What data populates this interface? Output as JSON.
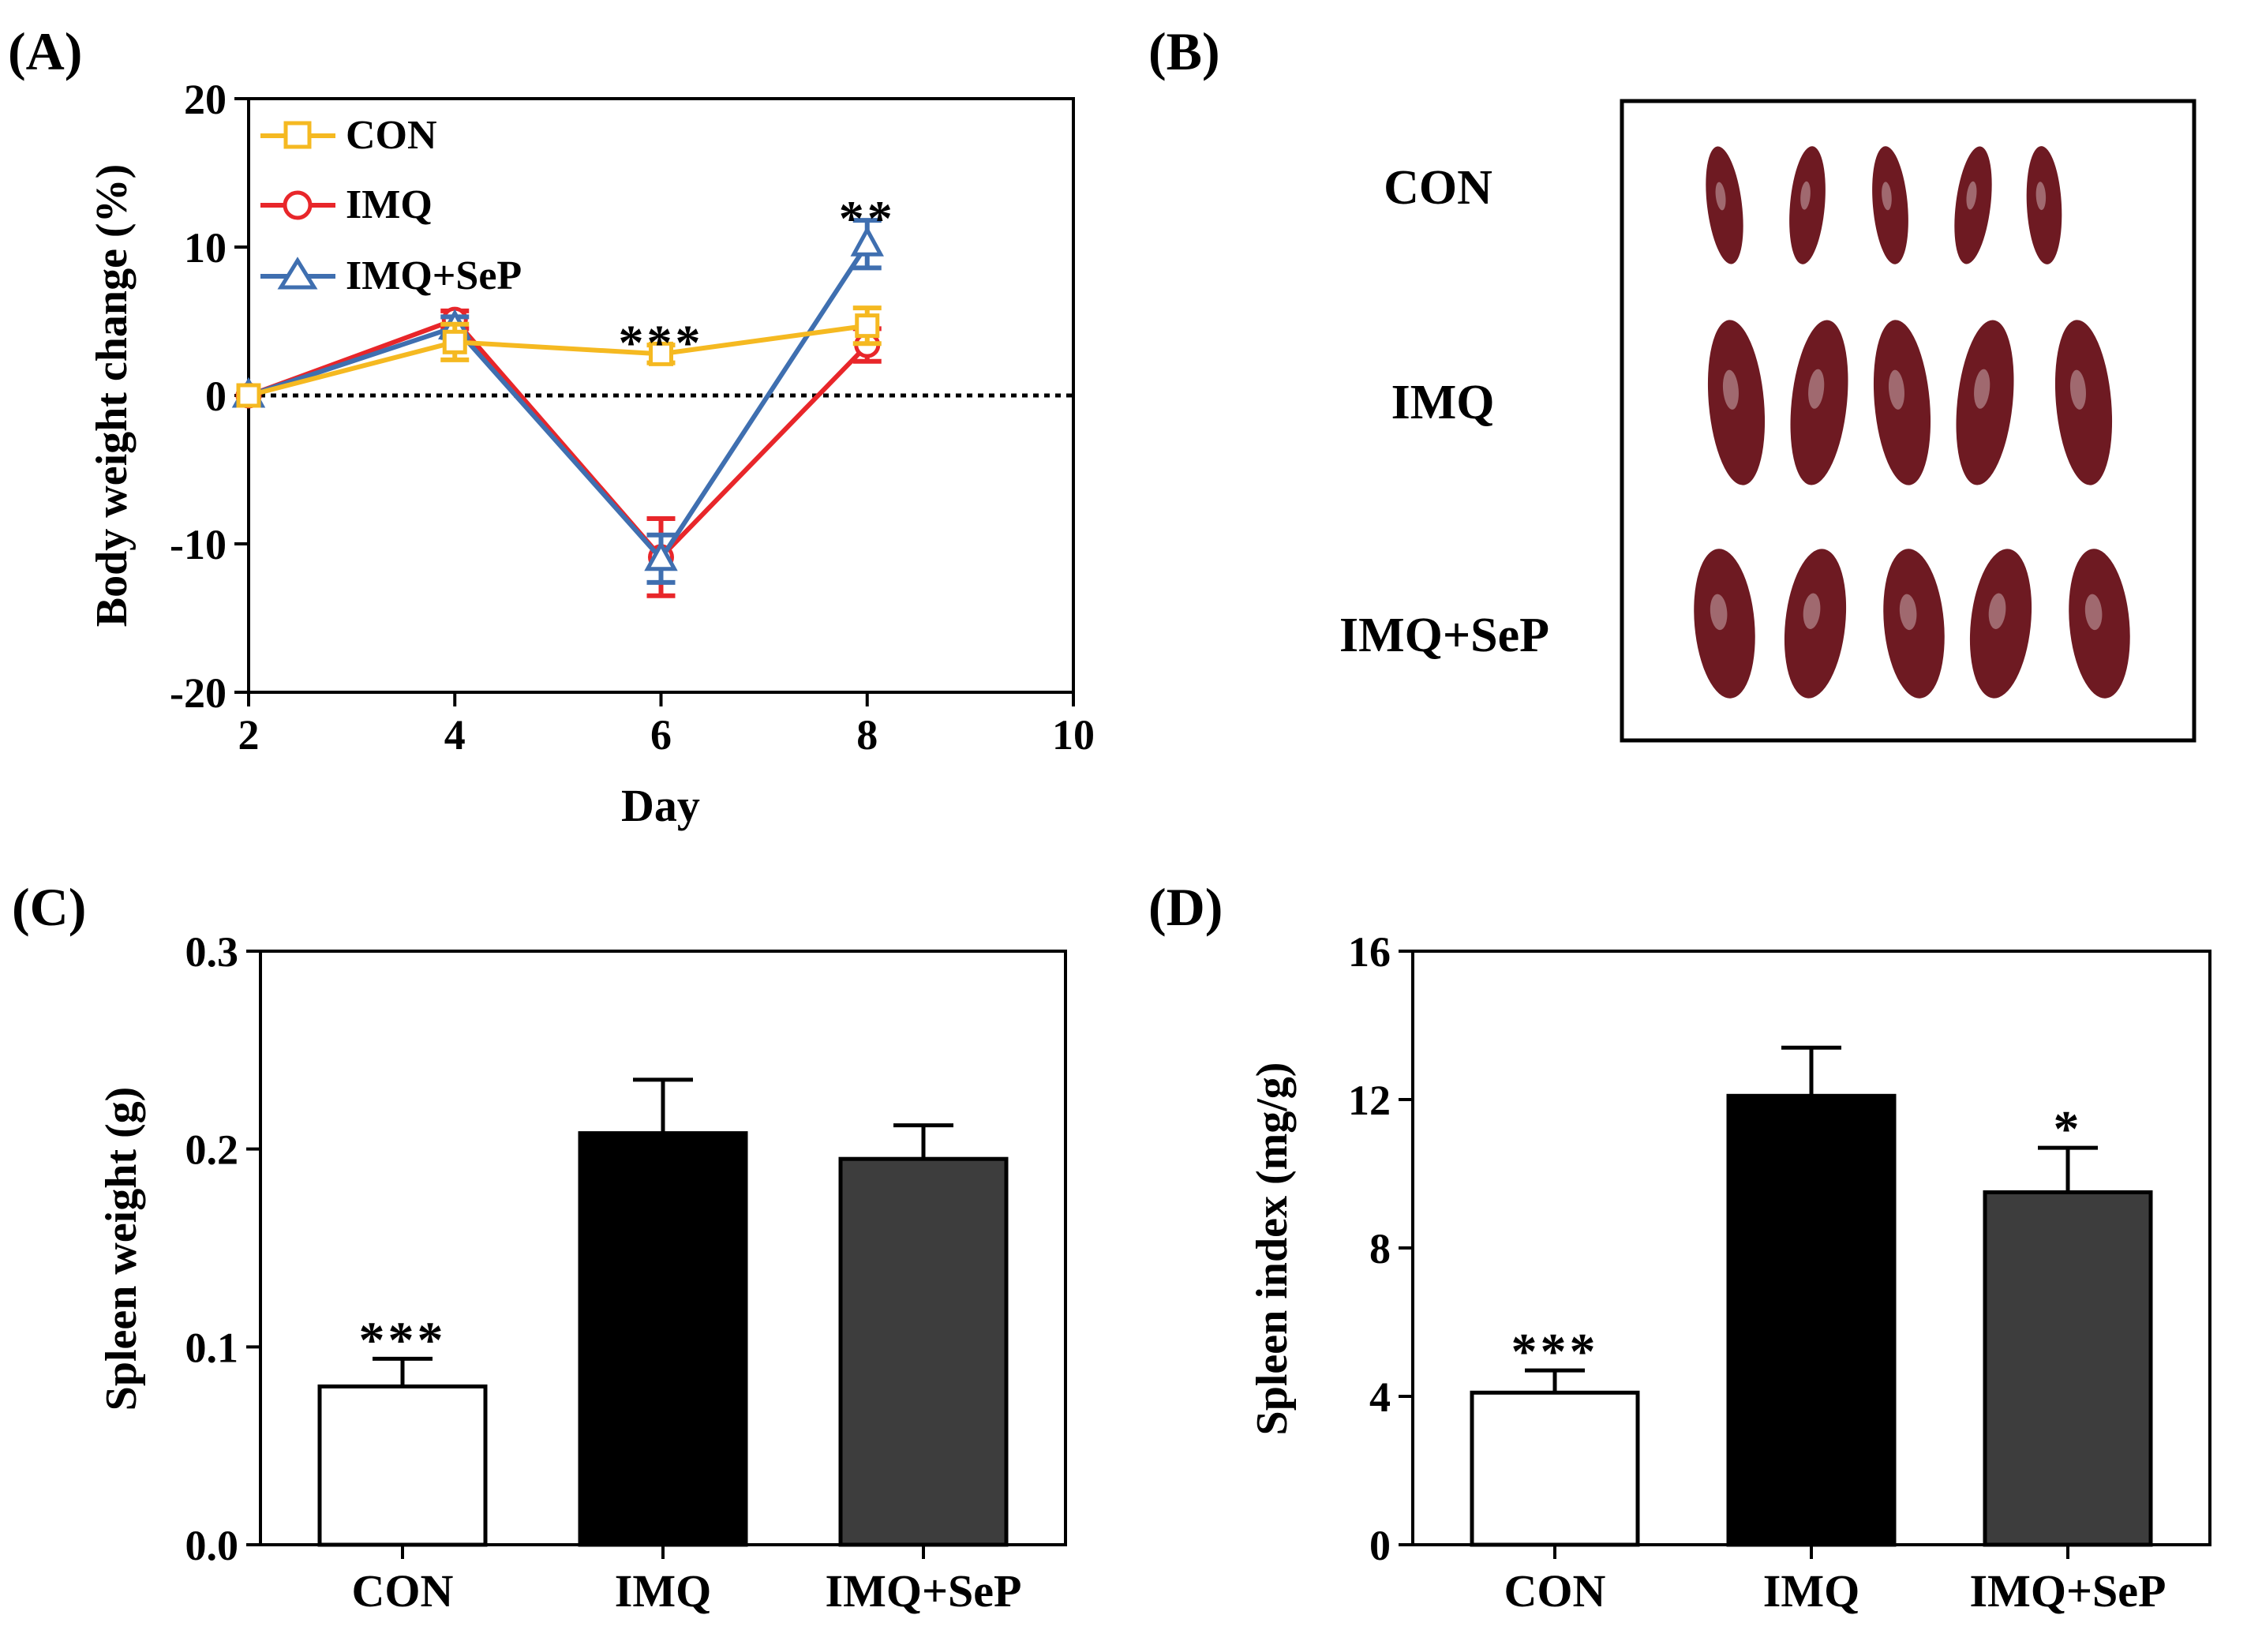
{
  "colors": {
    "con": "#F5B921",
    "imq": "#E8262A",
    "imq_sep": "#3F6FB0",
    "bar_con": "#FFFFFF",
    "bar_imq": "#000000",
    "bar_imq_sep": "#3D3D3D",
    "spleen": "#6E1A22",
    "axis": "#000000"
  },
  "panels": {
    "a": {
      "label": "(A)"
    },
    "b": {
      "label": "(B)",
      "rows": [
        "CON",
        "IMQ",
        "IMQ+SeP"
      ]
    },
    "c": {
      "label": "(C)"
    },
    "d": {
      "label": "(D)"
    }
  },
  "chart_data": [
    {
      "id": "A",
      "type": "line",
      "title": "",
      "xlabel": "Day",
      "ylabel": "Body weight change (%)",
      "xlim": [
        2,
        10
      ],
      "ylim": [
        -20,
        20
      ],
      "xticks": [
        2,
        4,
        6,
        8,
        10
      ],
      "yticks": [
        -20,
        -10,
        0,
        10,
        20
      ],
      "x": [
        2,
        4,
        6,
        8
      ],
      "reference_line": 0,
      "legend_position": "top-left",
      "series": [
        {
          "name": "CON",
          "marker": "square",
          "values": [
            0,
            3.6,
            2.8,
            4.7
          ],
          "errors": [
            0,
            1.2,
            0.6,
            1.2
          ]
        },
        {
          "name": "IMQ",
          "marker": "circle",
          "values": [
            0,
            5.1,
            -10.9,
            3.4
          ],
          "errors": [
            0,
            0.6,
            2.6,
            1.1
          ]
        },
        {
          "name": "IMQ+SeP",
          "marker": "triangle",
          "values": [
            0,
            4.6,
            -11.0,
            10.2
          ],
          "errors": [
            0,
            0.7,
            1.6,
            1.6
          ]
        }
      ],
      "annotations": [
        {
          "x": 6,
          "y": 3.9,
          "text": "***"
        },
        {
          "x": 8,
          "y": 12.3,
          "text": "**"
        }
      ]
    },
    {
      "id": "C",
      "type": "bar",
      "title": "",
      "xlabel": "",
      "ylabel": "Spleen weight (g)",
      "ylim": [
        0,
        0.3
      ],
      "yticks": [
        "0.0",
        "0.1",
        "0.2",
        "0.3"
      ],
      "categories": [
        "CON",
        "IMQ",
        "IMQ+SeP"
      ],
      "values": [
        0.08,
        0.208,
        0.195
      ],
      "errors": [
        0.014,
        0.027,
        0.017
      ],
      "annotations": [
        "***",
        "",
        ""
      ]
    },
    {
      "id": "D",
      "type": "bar",
      "title": "",
      "xlabel": "",
      "ylabel": "Spleen index (mg/g)",
      "ylim": [
        0,
        16
      ],
      "yticks": [
        "0",
        "4",
        "8",
        "12",
        "16"
      ],
      "categories": [
        "CON",
        "IMQ",
        "IMQ+SeP"
      ],
      "values": [
        4.1,
        12.1,
        9.5
      ],
      "errors": [
        0.6,
        1.3,
        1.2
      ],
      "annotations": [
        "***",
        "",
        "*"
      ]
    }
  ]
}
